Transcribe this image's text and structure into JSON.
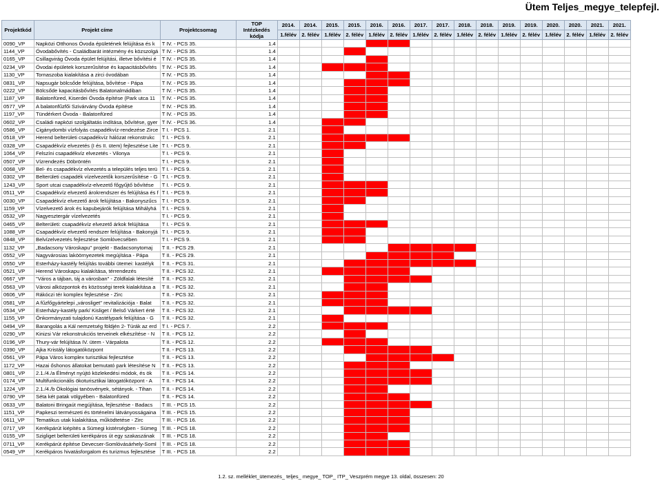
{
  "page_title": "Ütem Teljes_megye_telepfejl.",
  "headers": {
    "code": "Projektkód",
    "name": "Projekt címe",
    "group": "Projektcsomag",
    "top": "TOP Intézkedés kódja"
  },
  "periods": [
    {
      "year": "2014.",
      "half": "1.félév"
    },
    {
      "year": "2014.",
      "half": "2. félév"
    },
    {
      "year": "2015.",
      "half": "1.félév"
    },
    {
      "year": "2015.",
      "half": "2. félév"
    },
    {
      "year": "2016.",
      "half": "1.félév"
    },
    {
      "year": "2016.",
      "half": "2. félév"
    },
    {
      "year": "2017.",
      "half": "1.félév"
    },
    {
      "year": "2017.",
      "half": "2. félév"
    },
    {
      "year": "2018.",
      "half": "1.félév"
    },
    {
      "year": "2018.",
      "half": "2. félév"
    },
    {
      "year": "2019.",
      "half": "1.félév"
    },
    {
      "year": "2019.",
      "half": "2. félév"
    },
    {
      "year": "2020.",
      "half": "1.félév"
    },
    {
      "year": "2020.",
      "half": "2. félév"
    },
    {
      "year": "2021.",
      "half": "1.félév"
    },
    {
      "year": "2021.",
      "half": "2. félév"
    }
  ],
  "status_color": "#ff0000",
  "rows": [
    {
      "code": "0090_VP",
      "name": "Napközi Otthonos Óvoda épületének felújítása és k",
      "group": "T IV. - PCS 35.",
      "top": "1.4",
      "on": [
        4,
        5
      ]
    },
    {
      "code": "1144_VP",
      "name": "Óvodabővítés - Családbarát intézmény és közszolgá",
      "group": "T IV. - PCS 35.",
      "top": "1.4",
      "on": [
        3
      ]
    },
    {
      "code": "0165_VP",
      "name": "Csillagvirág Óvoda épület felújítási, illetve bővítési é",
      "group": "T IV. - PCS 35.",
      "top": "1.4",
      "on": [
        4
      ]
    },
    {
      "code": "0234_VP",
      "name": "Óvodai épületek korszerűsítése és kapacitásbővítés",
      "group": "T IV. - PCS 35.",
      "top": "1.4",
      "on": [
        2,
        3,
        4
      ]
    },
    {
      "code": "1130_VP",
      "name": "Tornaszoba kialakítása a zirci óvodában",
      "group": "T IV. - PCS 35.",
      "top": "1.4",
      "on": [
        4,
        5
      ]
    },
    {
      "code": "0831_VP",
      "name": "Napsugár bölcsőde felújítása, bővítése - Pápa",
      "group": "T IV. - PCS 35.",
      "top": "1.4",
      "on": [
        3,
        4,
        5
      ]
    },
    {
      "code": "0222_VP",
      "name": "Bölcsőde kapacitásbővítés Balatonalmádiban",
      "group": "T IV. - PCS 35.",
      "top": "1.4",
      "on": [
        3,
        4
      ]
    },
    {
      "code": "1187_VP",
      "name": "Balatonfüred, Kiserdei Óvoda építése (Park utca 11",
      "group": "T IV. - PCS 35.",
      "top": "1.4",
      "on": [
        3,
        4
      ]
    },
    {
      "code": "0577_VP",
      "name": "A balatonfűzfői Szivárvány Óvoda építése",
      "group": "T IV. - PCS 35.",
      "top": "1.4",
      "on": [
        3,
        4
      ]
    },
    {
      "code": "1197_VP",
      "name": "Tündérkert Óvoda - Balatonfüred",
      "group": "T IV. - PCS 35.",
      "top": "1.4",
      "on": [
        3,
        4
      ]
    },
    {
      "code": "0602_VP",
      "name": "Családi napközi szolgáltatás indítása, bővítése, gyer",
      "group": "T IV. - PCS 36.",
      "top": "1.4",
      "on": [
        2,
        3
      ]
    },
    {
      "code": "0586_VP",
      "name": "Cigánydombi vízfolyás csapadékvíz-rendezése Zirce",
      "group": "T I. - PCS 1.",
      "top": "2.1",
      "on": [
        2
      ]
    },
    {
      "code": "0518_VP",
      "name": "Herend belterületi csapadékvíz hálózat rekonstrukc",
      "group": "T I. - PCS 9.",
      "top": "2.1",
      "on": [
        2,
        3,
        4,
        5
      ]
    },
    {
      "code": "0328_VP",
      "name": "Csapadékvíz elvezetés (I és II. ütem) fejlesztése Lite",
      "group": "T I. - PCS 9.",
      "top": "2.1",
      "on": [
        2,
        3
      ]
    },
    {
      "code": "1064_VP",
      "name": "Felszíni csapadékvíz elvezetés - Vilonya",
      "group": "T I. - PCS 9.",
      "top": "2.1",
      "on": [
        2
      ]
    },
    {
      "code": "0507_VP",
      "name": "Vízrendezés Döbröntén",
      "group": "T I. - PCS 9.",
      "top": "2.1",
      "on": [
        2
      ]
    },
    {
      "code": "0068_VP",
      "name": "Bel- és csapadékvíz elvezetés a település teljes terü",
      "group": "T I. - PCS 9.",
      "top": "2.1",
      "on": [
        2
      ]
    },
    {
      "code": "0302_VP",
      "name": "Belterületi csapadék vízelvezetők korszerűsítése - G",
      "group": "T I. - PCS 9.",
      "top": "2.1",
      "on": [
        2
      ]
    },
    {
      "code": "1243_VP",
      "name": "Sport utcai csapadékvíz-elvezető főgyűjtő bővítése",
      "group": "T I. - PCS 9.",
      "top": "2.1",
      "on": [
        2,
        3,
        4
      ]
    },
    {
      "code": "0511_VP",
      "name": "Csapadékvíz elvezető árokrendszer és felújítása és f",
      "group": "T I. - PCS 9.",
      "top": "2.1",
      "on": [
        2,
        3,
        4
      ]
    },
    {
      "code": "0030_VP",
      "name": "Csapadékvíz elvezető árok felújítása - Bakonyszűcs",
      "group": "T I. - PCS 9.",
      "top": "2.1",
      "on": [
        2,
        3
      ]
    },
    {
      "code": "1159_VP",
      "name": "Vízelvezető árok és kapubejárók felújítása Mihályhá",
      "group": "T I. - PCS 9.",
      "top": "2.1",
      "on": [
        2
      ]
    },
    {
      "code": "0532_VP",
      "name": "Nagyesztergár vízelvezetés",
      "group": "T I. - PCS 9.",
      "top": "2.1",
      "on": [
        2
      ]
    },
    {
      "code": "0465_VP",
      "name": "Belterületi: csapadékvíz elvezető árkok felújítása",
      "group": "T I. - PCS 9.",
      "top": "2.1",
      "on": [
        2,
        3,
        4
      ]
    },
    {
      "code": "1088_VP",
      "name": "Csapadékvíz elvezető rendszer felújítása - Bakonyjá",
      "group": "T I. - PCS 9.",
      "top": "2.1",
      "on": [
        2,
        3
      ]
    },
    {
      "code": "0848_VP",
      "name": "Belvízelvezetés fejlesztése Somlóvecsében",
      "group": "T I. - PCS 9.",
      "top": "2.1",
      "on": [
        2,
        3
      ]
    },
    {
      "code": "1132_VP",
      "name": "„Badacsony Városkapu\" projekt - Badacsonytomaj",
      "group": "T II. - PCS 29.",
      "top": "2.1",
      "on": [
        5,
        6,
        7,
        8
      ]
    },
    {
      "code": "0552_VP",
      "name": "Nagyvárosias laköörnyezetek megújítása - Pápa",
      "group": "T II. - PCS 29.",
      "top": "2.1",
      "on": [
        4,
        5,
        6,
        7
      ]
    },
    {
      "code": "0550_VP",
      "name": "Esterházy-kastély felújítás további ütemei: kastélyk",
      "group": "T II. - PCS 31.",
      "top": "2.1",
      "on": [
        3,
        4,
        5,
        6,
        7,
        8
      ]
    },
    {
      "code": "0521_VP",
      "name": "Herend Városkapu kialakítása, térrendezés",
      "group": "T II. - PCS 32.",
      "top": "2.1",
      "on": [
        2,
        3,
        4,
        5
      ]
    },
    {
      "code": "0667_VP",
      "name": "\"Város a tájban, táj a városban\" - Zöldfalak létesíté",
      "group": "T II. - PCS 32.",
      "top": "2.1",
      "on": [
        3,
        4,
        5,
        6
      ]
    },
    {
      "code": "0563_VP",
      "name": "Városi alközpontok és közösségi terek kialakítása a",
      "group": "T II. - PCS 32.",
      "top": "2.1",
      "on": [
        3,
        4
      ]
    },
    {
      "code": "0606_VP",
      "name": "Rákóczi tér komplex fejlesztése - Zirc",
      "group": "T II. - PCS 32.",
      "top": "2.1",
      "on": [
        2,
        3,
        4
      ]
    },
    {
      "code": "0581_VP",
      "name": "A fűzfőgyártelepi „városliget\" revitalizációja - Balat",
      "group": "T II. - PCS 32.",
      "top": "2.1",
      "on": [
        2,
        3,
        4
      ]
    },
    {
      "code": "0534_VP",
      "name": "Esterházy-kastély park/ Kisliget / Belső Várkert érté",
      "group": "T II. - PCS 32.",
      "top": "2.1",
      "on": [
        3,
        4,
        5,
        6
      ]
    },
    {
      "code": "1155_VP",
      "name": "Önkormányzati tulajdonú Kastélypark felújítása - G",
      "group": "T II. - PCS 32.",
      "top": "2.1",
      "on": [
        2
      ]
    },
    {
      "code": "0494_VP",
      "name": "Barangolás a Kál nemzetség földjén 2- Túrák az erd",
      "group": "T I. - PCS 7.",
      "top": "2.2",
      "on": [
        2,
        3,
        4
      ]
    },
    {
      "code": "0290_VP",
      "name": "Kinizsi Vár rekonstrukciós terveinek elkészítése - N",
      "group": "T II. - PCS 12.",
      "top": "2.2",
      "on": [
        3
      ]
    },
    {
      "code": "0196_VP",
      "name": "Thury-vár felújítása IV. ütem - Várpalota",
      "group": "T II. - PCS 12.",
      "top": "2.2",
      "on": [
        2,
        3,
        4
      ]
    },
    {
      "code": "0390_VP",
      "name": "Ajka Kristály látogatóközpont",
      "group": "T II. - PCS 13.",
      "top": "2.2",
      "on": [
        3,
        4,
        5,
        6
      ]
    },
    {
      "code": "0561_VP",
      "name": "Pápa Város komplex turisztikai fejlesztése",
      "group": "T II. - PCS 13.",
      "top": "2.2",
      "on": [
        4,
        5,
        6,
        7
      ]
    },
    {
      "code": "1172_VP",
      "name": "Hazai őshonos állatokat bemutató park létesítése N",
      "group": "T II. - PCS 13.",
      "top": "2.2",
      "on": [
        3,
        4,
        5
      ]
    },
    {
      "code": "0801_VP",
      "name": "2.1./4./a Élményt nyújtó közlekedési módok, és ök",
      "group": "T II. - PCS 14.",
      "top": "2.2",
      "on": [
        3,
        4,
        5,
        6
      ]
    },
    {
      "code": "0174_VP",
      "name": "Multifunkcionális ökoturisztikai látogatóközpont - A",
      "group": "T II. - PCS 14.",
      "top": "2.2",
      "on": [
        3,
        4,
        5,
        6
      ]
    },
    {
      "code": "1224_VP",
      "name": "2.1./4./b Ökológiai tanösvények, sétányok. - Tihan",
      "group": "T II. - PCS 14.",
      "top": "2.2",
      "on": [
        3,
        4
      ]
    },
    {
      "code": "0790_VP",
      "name": "Séta két patak völgyében - Balatonfüred",
      "group": "T II. - PCS 14.",
      "top": "2.2",
      "on": [
        3,
        4,
        5
      ]
    },
    {
      "code": "0633_VP",
      "name": "Balatoni Bringaút megújítása, fejlesztése - Badacs",
      "group": "T III. - PCS 15.",
      "top": "2.2",
      "on": [
        3,
        4,
        5,
        6
      ]
    },
    {
      "code": "1151_VP",
      "name": "Papkeszi természeti és történelmi látványosságaina",
      "group": "T III. - PCS 15.",
      "top": "2.2",
      "on": [
        3,
        4,
        5
      ]
    },
    {
      "code": "0611_VP",
      "name": "Tematikus utak kialakítása, működtetése - Zirc",
      "group": "T III. - PCS 16.",
      "top": "2.2",
      "on": [
        3,
        4,
        5
      ]
    },
    {
      "code": "0717_VP",
      "name": "Kerékpárút kiépítés a Sümegi kistérségben - Sümeg",
      "group": "T III. - PCS 18.",
      "top": "2.2",
      "on": [
        3,
        4,
        5
      ]
    },
    {
      "code": "0155_VP",
      "name": "Szigliget belterületi kerékpáros út egy szakaszának",
      "group": "T III. - PCS 18.",
      "top": "2.2",
      "on": [
        3,
        4
      ]
    },
    {
      "code": "0711_VP",
      "name": "Kerékpárút építése Devecser-Somlóvásárhely-Soml",
      "group": "T III. - PCS 18.",
      "top": "2.2",
      "on": [
        3,
        4,
        5
      ]
    },
    {
      "code": "0549_VP",
      "name": "Kerékpáros hivatásforgalom és turizmus fejlesztése",
      "group": "T III. - PCS 18.",
      "top": "2.2",
      "on": [
        3,
        4,
        5
      ]
    }
  ],
  "footer": "1.2. sz. melléklet_ütemezés_ teljes_ megye_ TOP_ ITP_ Veszprém megye 13. oldal, összesen: 20"
}
